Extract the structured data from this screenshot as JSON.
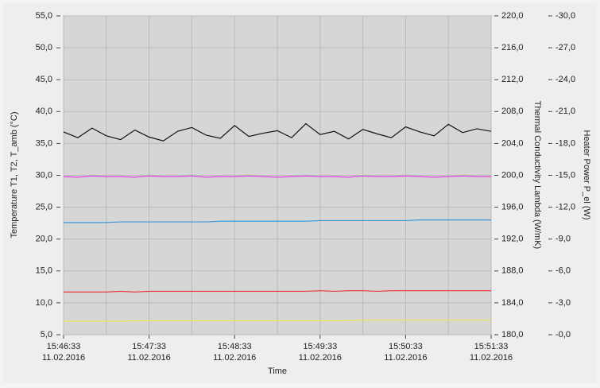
{
  "chart_data": {
    "type": "line",
    "x_label": "Time",
    "y_label": "Temperature  T1, T2, T_amb    (°C)",
    "y2_label": "Thermal Conductivity  Lambda    (W/mK)",
    "y3_label": "Heater Power   P_el    (W)",
    "x": [
      "15:46:33",
      "15:46:43",
      "15:46:53",
      "15:47:03",
      "15:47:13",
      "15:47:23",
      "15:47:33",
      "15:47:43",
      "15:47:53",
      "15:48:03",
      "15:48:13",
      "15:48:23",
      "15:48:33",
      "15:48:43",
      "15:48:53",
      "15:49:03",
      "15:49:13",
      "15:49:23",
      "15:49:33",
      "15:49:43",
      "15:49:53",
      "15:50:03",
      "15:50:13",
      "15:50:23",
      "15:50:33",
      "15:50:43",
      "15:50:53",
      "15:51:03",
      "15:51:13",
      "15:51:23",
      "15:51:33"
    ],
    "xlim": [
      "15:46:33",
      "15:51:33"
    ],
    "xticks": [
      {
        "value": "15:46:33",
        "label": [
          "15:46:33",
          "11.02.2016"
        ]
      },
      {
        "value": "15:47:33",
        "label": [
          "15:47:33",
          "11.02.2016"
        ]
      },
      {
        "value": "15:48:33",
        "label": [
          "15:48:33",
          "11.02.2016"
        ]
      },
      {
        "value": "15:49:33",
        "label": [
          "15:49:33",
          "11.02.2016"
        ]
      },
      {
        "value": "15:50:33",
        "label": [
          "15:50:33",
          "11.02.2016"
        ]
      },
      {
        "value": "15:51:33",
        "label": [
          "15:51:33",
          "11.02.2016"
        ]
      }
    ],
    "xminorticks": [
      "15:47:03",
      "15:48:03",
      "15:49:03",
      "15:50:03",
      "15:51:03"
    ],
    "ylim": [
      5,
      55
    ],
    "yticks": [
      {
        "value": 5,
        "label": "5,0"
      },
      {
        "value": 10,
        "label": "10,0"
      },
      {
        "value": 15,
        "label": "15,0"
      },
      {
        "value": 20,
        "label": "20,0"
      },
      {
        "value": 25,
        "label": "25,0"
      },
      {
        "value": 30,
        "label": "30,0"
      },
      {
        "value": 35,
        "label": "35,0"
      },
      {
        "value": 40,
        "label": "40,0"
      },
      {
        "value": 45,
        "label": "45,0"
      },
      {
        "value": 50,
        "label": "50,0"
      },
      {
        "value": 55,
        "label": "55,0"
      }
    ],
    "y2lim": [
      180,
      220
    ],
    "y2ticks": [
      {
        "value": 180,
        "label": "180,0"
      },
      {
        "value": 184,
        "label": "184,0"
      },
      {
        "value": 188,
        "label": "188,0"
      },
      {
        "value": 192,
        "label": "192,0"
      },
      {
        "value": 196,
        "label": "196,0"
      },
      {
        "value": 200,
        "label": "200,0"
      },
      {
        "value": 204,
        "label": "204,0"
      },
      {
        "value": 208,
        "label": "208,0"
      },
      {
        "value": 212,
        "label": "212,0"
      },
      {
        "value": 216,
        "label": "216,0"
      },
      {
        "value": 220,
        "label": "220,0"
      }
    ],
    "y3lim": [
      0,
      -30
    ],
    "y3ticks": [
      {
        "value": 0,
        "label": "-0,0"
      },
      {
        "value": -3,
        "label": "-3,0"
      },
      {
        "value": -6,
        "label": "-6,0"
      },
      {
        "value": -9,
        "label": "-9,0"
      },
      {
        "value": -12,
        "label": "-12,0"
      },
      {
        "value": -15,
        "label": "-15,0"
      },
      {
        "value": -18,
        "label": "-18,0"
      },
      {
        "value": -21,
        "label": "-21,0"
      },
      {
        "value": -24,
        "label": "-24,0"
      },
      {
        "value": -27,
        "label": "-27,0"
      },
      {
        "value": -30,
        "label": "-30,0"
      }
    ],
    "grid": true,
    "series": [
      {
        "color": "#111111",
        "values": [
          36.8,
          35.9,
          37.4,
          36.2,
          35.6,
          37.1,
          36.0,
          35.4,
          36.9,
          37.5,
          36.3,
          35.8,
          37.8,
          36.1,
          36.6,
          37.0,
          35.9,
          38.1,
          36.4,
          36.9,
          35.7,
          37.2,
          36.5,
          35.9,
          37.6,
          36.8,
          36.2,
          38.0,
          36.7,
          37.3,
          36.9
        ]
      },
      {
        "color": "#e040e0",
        "values": [
          29.8,
          29.7,
          29.9,
          29.8,
          29.8,
          29.7,
          29.9,
          29.8,
          29.8,
          29.9,
          29.7,
          29.8,
          29.8,
          29.9,
          29.8,
          29.7,
          29.8,
          29.9,
          29.8,
          29.8,
          29.7,
          29.9,
          29.8,
          29.8,
          29.9,
          29.8,
          29.7,
          29.8,
          29.9,
          29.8,
          29.8
        ]
      },
      {
        "color": "#3a9ad9",
        "values": [
          22.6,
          22.6,
          22.6,
          22.6,
          22.7,
          22.7,
          22.7,
          22.7,
          22.7,
          22.7,
          22.7,
          22.8,
          22.8,
          22.8,
          22.8,
          22.8,
          22.8,
          22.8,
          22.9,
          22.9,
          22.9,
          22.9,
          22.9,
          22.9,
          22.9,
          23.0,
          23.0,
          23.0,
          23.0,
          23.0,
          23.0
        ]
      },
      {
        "color": "#e84040",
        "values": [
          11.7,
          11.7,
          11.7,
          11.7,
          11.8,
          11.7,
          11.8,
          11.8,
          11.8,
          11.8,
          11.8,
          11.8,
          11.8,
          11.8,
          11.8,
          11.8,
          11.8,
          11.8,
          11.9,
          11.8,
          11.9,
          11.9,
          11.8,
          11.9,
          11.9,
          11.9,
          11.9,
          11.9,
          11.9,
          11.9,
          11.9
        ]
      },
      {
        "color": "#ecec50",
        "values": [
          7.1,
          7.1,
          7.1,
          7.1,
          7.1,
          7.2,
          7.2,
          7.2,
          7.2,
          7.2,
          7.2,
          7.2,
          7.2,
          7.2,
          7.2,
          7.2,
          7.2,
          7.2,
          7.2,
          7.2,
          7.2,
          7.3,
          7.3,
          7.3,
          7.3,
          7.3,
          7.3,
          7.3,
          7.3,
          7.3,
          7.3
        ]
      }
    ]
  }
}
